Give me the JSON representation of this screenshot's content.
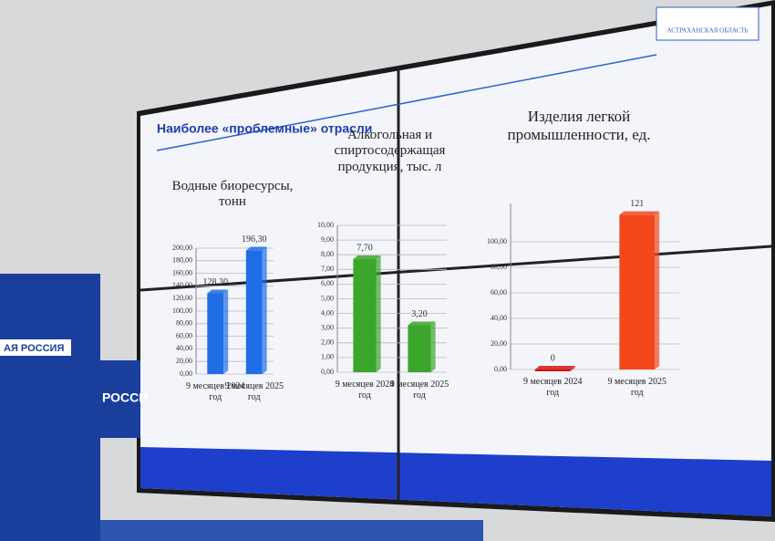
{
  "slide": {
    "title": "Наиболее «проблемные» отрасли",
    "logo": "АСТРАХАНСКАЯ ОБЛАСТЬ"
  },
  "banner": {
    "left": "АЯ РОССИЯ",
    "wall": "РОССИ"
  },
  "chart_data": [
    {
      "type": "bar",
      "title": "Водные биоресурсы, тонн",
      "categories": [
        "9 месяцев 2024 год",
        "9 месяцев 2025 год"
      ],
      "values": [
        128.3,
        196.3
      ],
      "value_labels": [
        "128,30",
        "196,30"
      ],
      "colors": [
        "#1f6ee6",
        "#1f6ee6"
      ],
      "ylim": [
        0,
        200
      ],
      "yticks": [
        {
          "value": 0,
          "label": "0,00"
        },
        {
          "value": 20,
          "label": "20,00"
        },
        {
          "value": 40,
          "label": "40,00"
        },
        {
          "value": 60,
          "label": "60,00"
        },
        {
          "value": 80,
          "label": "80,00"
        },
        {
          "value": 100,
          "label": "100,00"
        },
        {
          "value": 120,
          "label": "120,00"
        },
        {
          "value": 140,
          "label": "140,00"
        },
        {
          "value": 160,
          "label": "160,00"
        },
        {
          "value": 180,
          "label": "180,00"
        },
        {
          "value": 200,
          "label": "200,00"
        }
      ],
      "grid": true
    },
    {
      "type": "bar",
      "title": "Алкогольная и спиртосодержащая продукция, тыс. л",
      "categories": [
        "9 месяцев 2024 год",
        "9 месяцев 2025 год"
      ],
      "values": [
        7.7,
        3.2
      ],
      "value_labels": [
        "7,70",
        "3,20"
      ],
      "colors": [
        "#3ba52c",
        "#3ba52c"
      ],
      "ylim": [
        0,
        10
      ],
      "yticks": [
        {
          "value": 0,
          "label": "0,00"
        },
        {
          "value": 1,
          "label": "1,00"
        },
        {
          "value": 2,
          "label": "2,00"
        },
        {
          "value": 3,
          "label": "3,00"
        },
        {
          "value": 4,
          "label": "4,00"
        },
        {
          "value": 5,
          "label": "5,00"
        },
        {
          "value": 6,
          "label": "6,00"
        },
        {
          "value": 7,
          "label": "7,00"
        },
        {
          "value": 8,
          "label": "8,00"
        },
        {
          "value": 9,
          "label": "9,00"
        },
        {
          "value": 10,
          "label": "10,00"
        }
      ],
      "grid": true
    },
    {
      "type": "bar",
      "title": "Изделия легкой промышленности, ед.",
      "categories": [
        "9 месяцев 2024 год",
        "9 месяцев 2025 год"
      ],
      "values": [
        0,
        121
      ],
      "colors": [
        "#d41414",
        "#f2481c"
      ],
      "ylim": [
        0,
        130
      ],
      "yticks": [
        {
          "value": 0,
          "label": "0,00"
        },
        {
          "value": 20,
          "label": "20,00"
        },
        {
          "value": 40,
          "label": "40,00"
        },
        {
          "value": 60,
          "label": "60,00"
        },
        {
          "value": 80,
          "label": "80,00"
        },
        {
          "value": 100,
          "label": "100,00"
        }
      ],
      "grid": true
    }
  ]
}
